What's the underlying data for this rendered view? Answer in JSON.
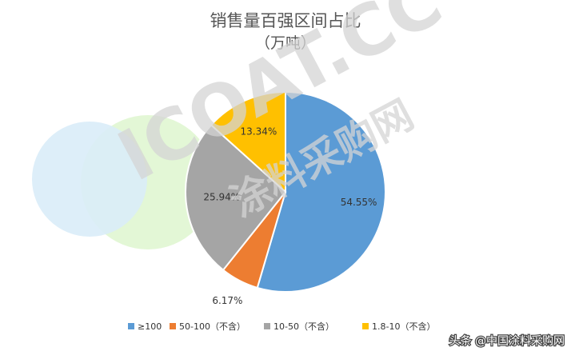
{
  "chart_data": {
    "type": "pie",
    "title": "销售量百强区间占比",
    "subtitle": "（万吨）",
    "categories": [
      "≥100",
      "50-100（不含）",
      "10-50（不含）",
      "1.8-10（不含）"
    ],
    "values": [
      54.55,
      6.17,
      25.94,
      13.34
    ],
    "value_labels": [
      "54.55%",
      "6.17%",
      "25.94%",
      "13.34%"
    ],
    "colors": [
      "#5b9bd5",
      "#ed7d31",
      "#a5a5a5",
      "#ffc000"
    ],
    "legend_position": "bottom"
  },
  "watermark": {
    "text": "ICOAT.CC",
    "text_cn": "涂料采购网"
  },
  "credit": {
    "text": "头条 @中国涂料采购网"
  }
}
